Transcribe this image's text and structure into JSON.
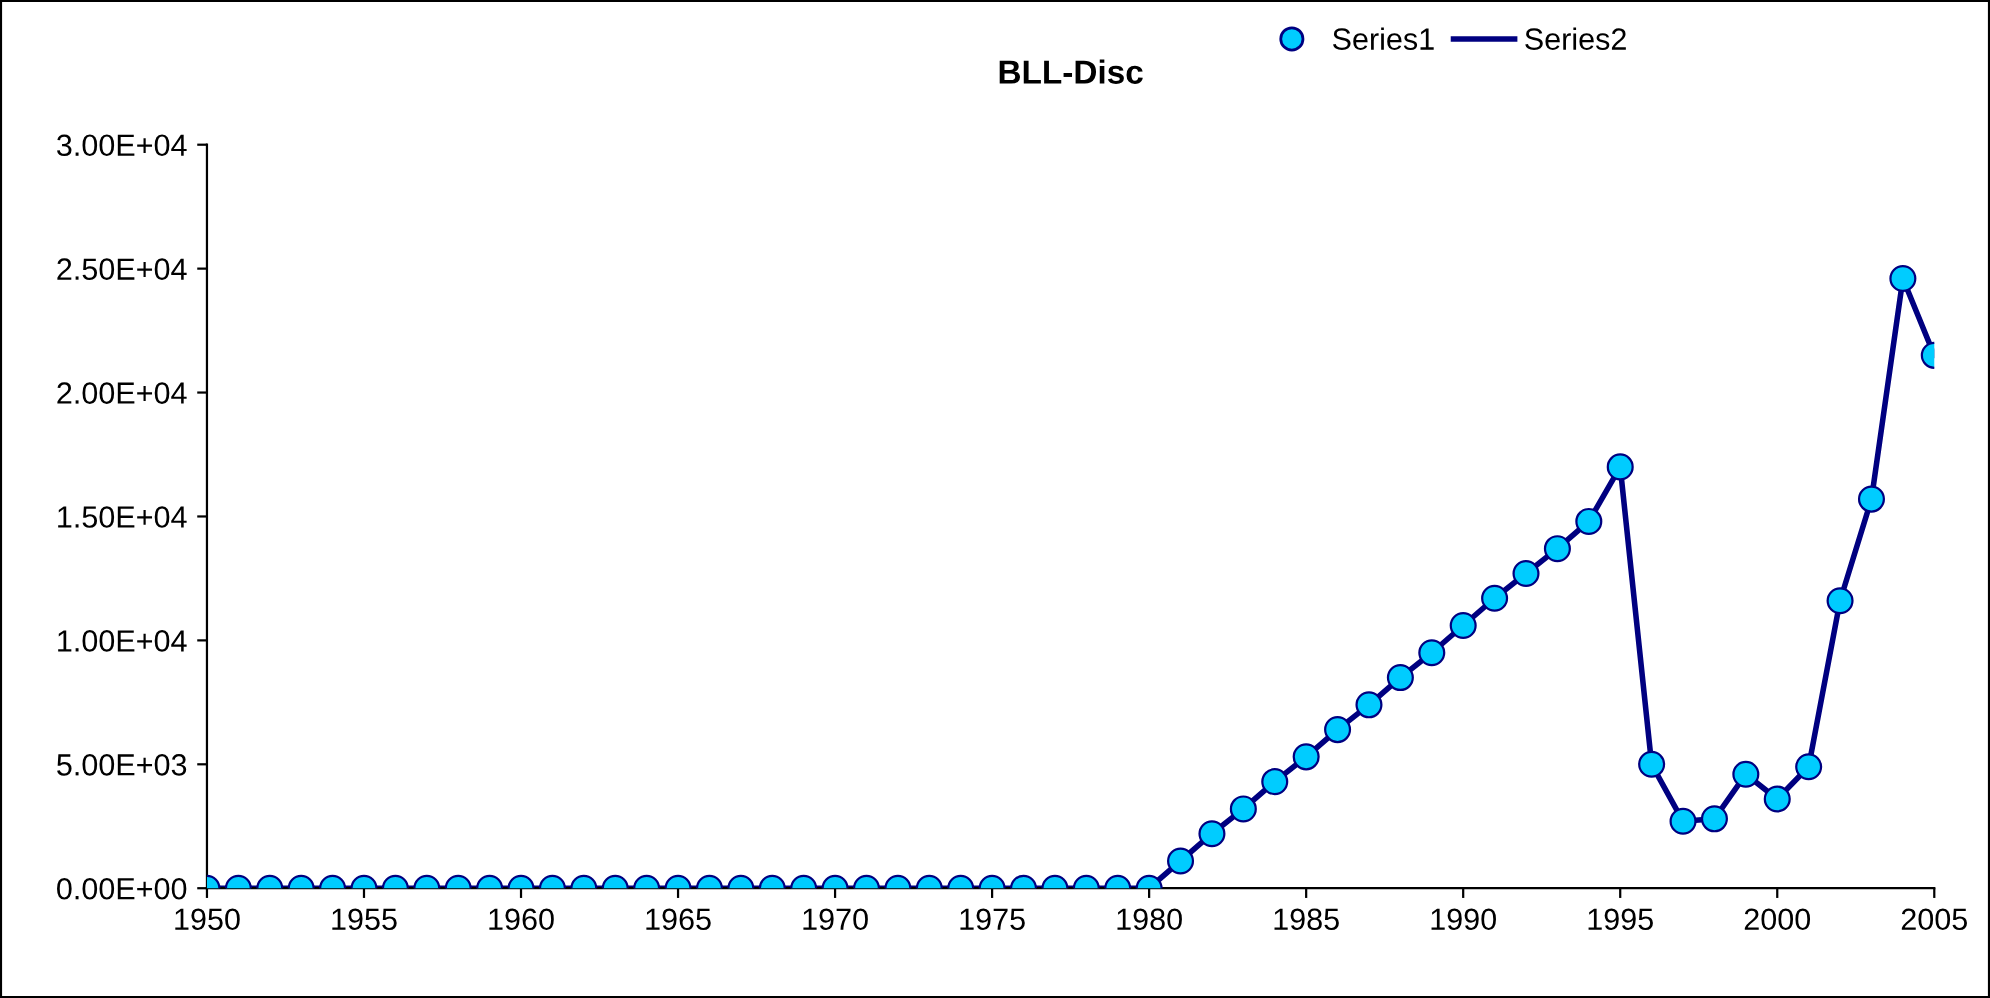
{
  "chart_data": {
    "type": "line",
    "title": "BLL-Disc",
    "x": [
      1950,
      1951,
      1952,
      1953,
      1954,
      1955,
      1956,
      1957,
      1958,
      1959,
      1960,
      1961,
      1962,
      1963,
      1964,
      1965,
      1966,
      1967,
      1968,
      1969,
      1970,
      1971,
      1972,
      1973,
      1974,
      1975,
      1976,
      1977,
      1978,
      1979,
      1980,
      1981,
      1982,
      1983,
      1984,
      1985,
      1986,
      1987,
      1988,
      1989,
      1990,
      1991,
      1992,
      1993,
      1994,
      1995,
      1996,
      1997,
      1998,
      1999,
      2000,
      2001,
      2002,
      2003,
      2004,
      2005
    ],
    "series": [
      {
        "name": "Series1",
        "type": "scatter",
        "marker": "circle",
        "color": "#00ccff",
        "values": [
          0,
          0,
          0,
          0,
          0,
          0,
          0,
          0,
          0,
          0,
          0,
          0,
          0,
          0,
          0,
          0,
          0,
          0,
          0,
          0,
          0,
          0,
          0,
          0,
          0,
          0,
          0,
          0,
          0,
          0,
          0,
          1100,
          2200,
          3200,
          4300,
          5300,
          6400,
          7400,
          8500,
          9500,
          10600,
          11700,
          12700,
          13700,
          14800,
          17000,
          5000,
          2700,
          2800,
          4600,
          3600,
          4900,
          11600,
          15700,
          24600,
          21500
        ]
      },
      {
        "name": "Series2",
        "marker": "none",
        "line_style": "solid",
        "color": "#000080",
        "values": [
          0,
          0,
          0,
          0,
          0,
          0,
          0,
          0,
          0,
          0,
          0,
          0,
          0,
          0,
          0,
          0,
          0,
          0,
          0,
          0,
          0,
          0,
          0,
          0,
          0,
          0,
          0,
          0,
          0,
          0,
          0,
          1100,
          2200,
          3200,
          4300,
          5300,
          6400,
          7400,
          8500,
          9500,
          10600,
          11700,
          12700,
          13700,
          14800,
          17000,
          5000,
          2700,
          2800,
          4600,
          3600,
          4900,
          11600,
          15700,
          24600,
          21500
        ]
      }
    ],
    "xlim": [
      1950,
      2005
    ],
    "xticks": [
      1950,
      1955,
      1960,
      1965,
      1970,
      1975,
      1980,
      1985,
      1990,
      1995,
      2000,
      2005
    ],
    "ylim": [
      0,
      30000
    ],
    "yticks": [
      {
        "value": 0,
        "label": "0.00E+00"
      },
      {
        "value": 5000,
        "label": "5.00E+03"
      },
      {
        "value": 10000,
        "label": "1.00E+04"
      },
      {
        "value": 15000,
        "label": "1.50E+04"
      },
      {
        "value": 20000,
        "label": "2.00E+04"
      },
      {
        "value": 25000,
        "label": "2.50E+04"
      },
      {
        "value": 30000,
        "label": "3.00E+04"
      }
    ],
    "grid": false,
    "legend": "top right"
  }
}
